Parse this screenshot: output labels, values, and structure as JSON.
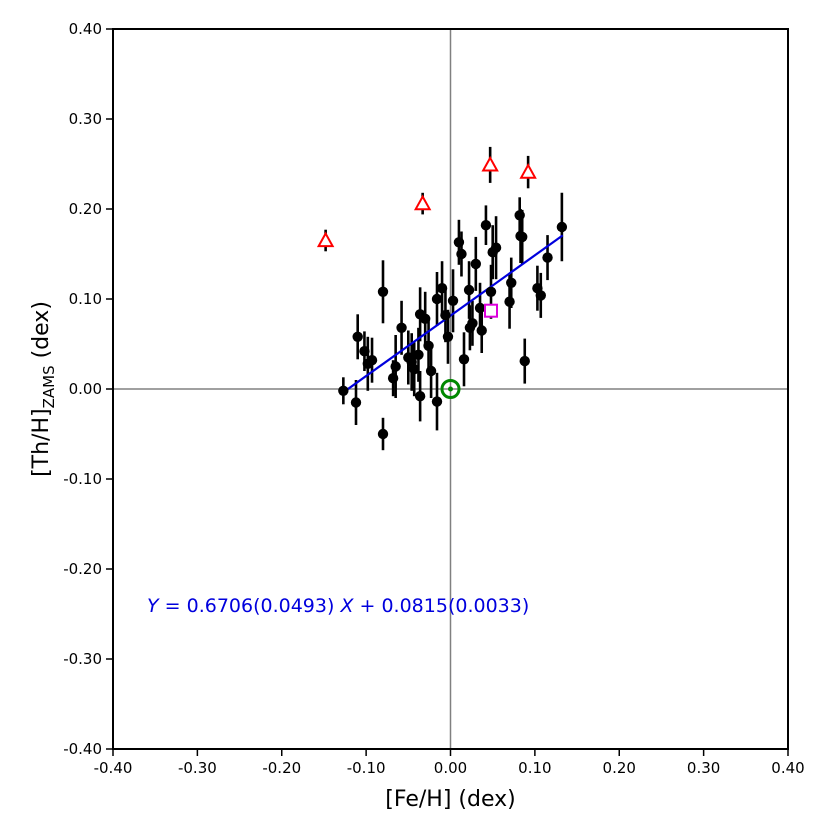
{
  "chart_data": {
    "type": "scatter",
    "xlabel": "[Fe/H] (dex)",
    "ylabel_main": "[Th/H]",
    "ylabel_sub": "ZAMS",
    "ylabel_suffix": " (dex)",
    "xlim": [
      -0.4,
      0.4
    ],
    "ylim": [
      -0.4,
      0.4
    ],
    "x_ticks": [
      -0.4,
      -0.3,
      -0.2,
      -0.1,
      0.0,
      0.1,
      0.2,
      0.3,
      0.4
    ],
    "x_tick_labels": [
      "-0.40",
      "-0.30",
      "-0.20",
      "-0.10",
      "0.00",
      "0.10",
      "0.20",
      "0.30",
      "0.40"
    ],
    "y_ticks": [
      -0.4,
      -0.3,
      -0.2,
      -0.1,
      0.0,
      0.1,
      0.2,
      0.3,
      0.4
    ],
    "y_tick_labels": [
      "-0.40",
      "-0.30",
      "-0.20",
      "-0.10",
      "0.00",
      "0.10",
      "0.20",
      "0.30",
      "0.40"
    ],
    "reference_lines": {
      "x": 0.0,
      "y": 0.0,
      "color": "#808080"
    },
    "colors": {
      "points": "#000000",
      "fit": "#0000dd",
      "triangles": "#ff0000",
      "square": "#dd00dd",
      "sun": "#008800"
    },
    "fit": {
      "slope": 0.6706,
      "intercept": 0.0815,
      "x_range": [
        -0.127,
        0.133
      ]
    },
    "equation": {
      "y_var": "Y",
      "eq_part1": " = 0.6706(0.0493) ",
      "x_var": "X",
      "eq_part2": " + 0.0815(0.0033)"
    },
    "series": [
      {
        "marker": "circle-filled",
        "points": [
          {
            "x": -0.127,
            "y": -0.002,
            "err": 0.015
          },
          {
            "x": -0.112,
            "y": -0.015,
            "err": 0.025
          },
          {
            "x": -0.11,
            "y": 0.058,
            "err": 0.025
          },
          {
            "x": -0.102,
            "y": 0.042,
            "err": 0.022
          },
          {
            "x": -0.098,
            "y": 0.028,
            "err": 0.03
          },
          {
            "x": -0.093,
            "y": 0.032,
            "err": 0.025
          },
          {
            "x": -0.08,
            "y": 0.108,
            "err": 0.035
          },
          {
            "x": -0.08,
            "y": -0.05,
            "err": 0.018
          },
          {
            "x": -0.068,
            "y": 0.012,
            "err": 0.02
          },
          {
            "x": -0.065,
            "y": 0.025,
            "err": 0.035
          },
          {
            "x": -0.058,
            "y": 0.068,
            "err": 0.03
          },
          {
            "x": -0.05,
            "y": 0.035,
            "err": 0.03
          },
          {
            "x": -0.046,
            "y": 0.03,
            "err": 0.032
          },
          {
            "x": -0.043,
            "y": 0.022,
            "err": 0.03
          },
          {
            "x": -0.038,
            "y": 0.038,
            "err": 0.03
          },
          {
            "x": -0.036,
            "y": 0.083,
            "err": 0.03
          },
          {
            "x": -0.036,
            "y": -0.008,
            "err": 0.028
          },
          {
            "x": -0.03,
            "y": 0.078,
            "err": 0.03
          },
          {
            "x": -0.026,
            "y": 0.048,
            "err": 0.032
          },
          {
            "x": -0.023,
            "y": 0.02,
            "err": 0.03
          },
          {
            "x": -0.016,
            "y": 0.1,
            "err": 0.03
          },
          {
            "x": -0.016,
            "y": -0.014,
            "err": 0.032
          },
          {
            "x": -0.01,
            "y": 0.112,
            "err": 0.03
          },
          {
            "x": -0.006,
            "y": 0.082,
            "err": 0.03
          },
          {
            "x": -0.003,
            "y": 0.058,
            "err": 0.03
          },
          {
            "x": 0.003,
            "y": 0.098,
            "err": 0.035
          },
          {
            "x": 0.01,
            "y": 0.163,
            "err": 0.025
          },
          {
            "x": 0.013,
            "y": 0.15,
            "err": 0.025
          },
          {
            "x": 0.016,
            "y": 0.033,
            "err": 0.03
          },
          {
            "x": 0.022,
            "y": 0.11,
            "err": 0.032
          },
          {
            "x": 0.023,
            "y": 0.068,
            "err": 0.025
          },
          {
            "x": 0.026,
            "y": 0.073,
            "err": 0.025
          },
          {
            "x": 0.03,
            "y": 0.139,
            "err": 0.03
          },
          {
            "x": 0.035,
            "y": 0.09,
            "err": 0.028
          },
          {
            "x": 0.037,
            "y": 0.065,
            "err": 0.025
          },
          {
            "x": 0.042,
            "y": 0.182,
            "err": 0.022
          },
          {
            "x": 0.048,
            "y": 0.108,
            "err": 0.03
          },
          {
            "x": 0.05,
            "y": 0.152,
            "err": 0.03
          },
          {
            "x": 0.054,
            "y": 0.157,
            "err": 0.035
          },
          {
            "x": 0.07,
            "y": 0.097,
            "err": 0.03
          },
          {
            "x": 0.072,
            "y": 0.118,
            "err": 0.028
          },
          {
            "x": 0.082,
            "y": 0.193,
            "err": 0.02
          },
          {
            "x": 0.083,
            "y": 0.17,
            "err": 0.03
          },
          {
            "x": 0.085,
            "y": 0.169,
            "err": 0.03
          },
          {
            "x": 0.088,
            "y": 0.031,
            "err": 0.025
          },
          {
            "x": 0.103,
            "y": 0.112,
            "err": 0.025
          },
          {
            "x": 0.107,
            "y": 0.104,
            "err": 0.025
          },
          {
            "x": 0.115,
            "y": 0.146,
            "err": 0.025
          },
          {
            "x": 0.132,
            "y": 0.18,
            "err": 0.038
          }
        ]
      },
      {
        "marker": "triangle-open",
        "points": [
          {
            "x": -0.148,
            "y": 0.165,
            "err": 0.012
          },
          {
            "x": -0.033,
            "y": 0.206,
            "err": 0.012
          },
          {
            "x": 0.047,
            "y": 0.249,
            "err": 0.02
          },
          {
            "x": 0.092,
            "y": 0.241,
            "err": 0.018
          }
        ]
      },
      {
        "marker": "square-open",
        "points": [
          {
            "x": 0.048,
            "y": 0.087
          }
        ]
      },
      {
        "marker": "sun",
        "points": [
          {
            "x": 0.0,
            "y": 0.0
          }
        ]
      }
    ]
  }
}
